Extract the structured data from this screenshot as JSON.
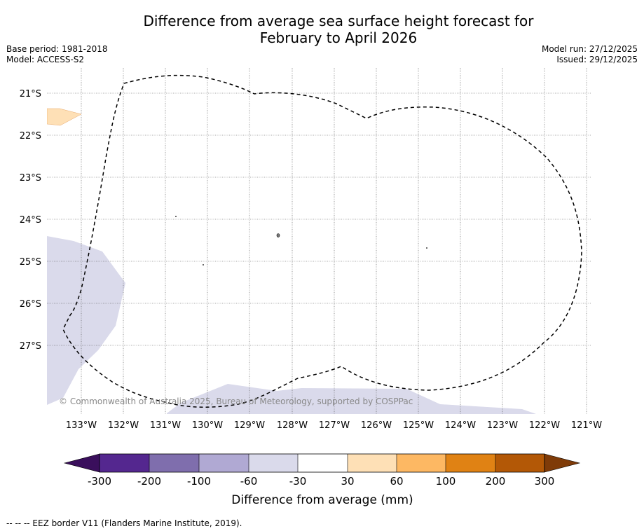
{
  "title": {
    "line1": "Difference from average sea surface height forecast for",
    "line2": "February to April 2026"
  },
  "meta": {
    "base_period": "Base period: 1981-2018",
    "model": "Model: ACCESS-S2",
    "model_run": "Model run: 27/12/2025",
    "issued": "Issued: 29/12/2025"
  },
  "map": {
    "longitude_labels": [
      "133°W",
      "132°W",
      "131°W",
      "130°W",
      "129°W",
      "128°W",
      "127°W",
      "126°W",
      "125°W",
      "124°W",
      "123°W",
      "122°W",
      "121°W"
    ],
    "latitude_labels": [
      "21°S",
      "22°S",
      "23°S",
      "24°S",
      "25°S",
      "26°S",
      "27°S"
    ],
    "copyright": "© Commonwealth of Australia 2025, Bureau of Meteorology, supported by COSPPac"
  },
  "legend": {
    "title": "Difference from average (mm)",
    "tick_labels": [
      "-300",
      "-200",
      "-100",
      "-60",
      "-30",
      "30",
      "60",
      "100",
      "200",
      "300"
    ],
    "colors": [
      "#3a0f5c",
      "#54278f",
      "#7f6ead",
      "#b0a9d3",
      "#dadaeb",
      "#ffffff",
      "#fee0b6",
      "#fdb863",
      "#e08214",
      "#b35806",
      "#7f3b08"
    ]
  },
  "footnote": "--  --  -- EEZ border V11 (Flanders Marine Institute, 2019)."
}
